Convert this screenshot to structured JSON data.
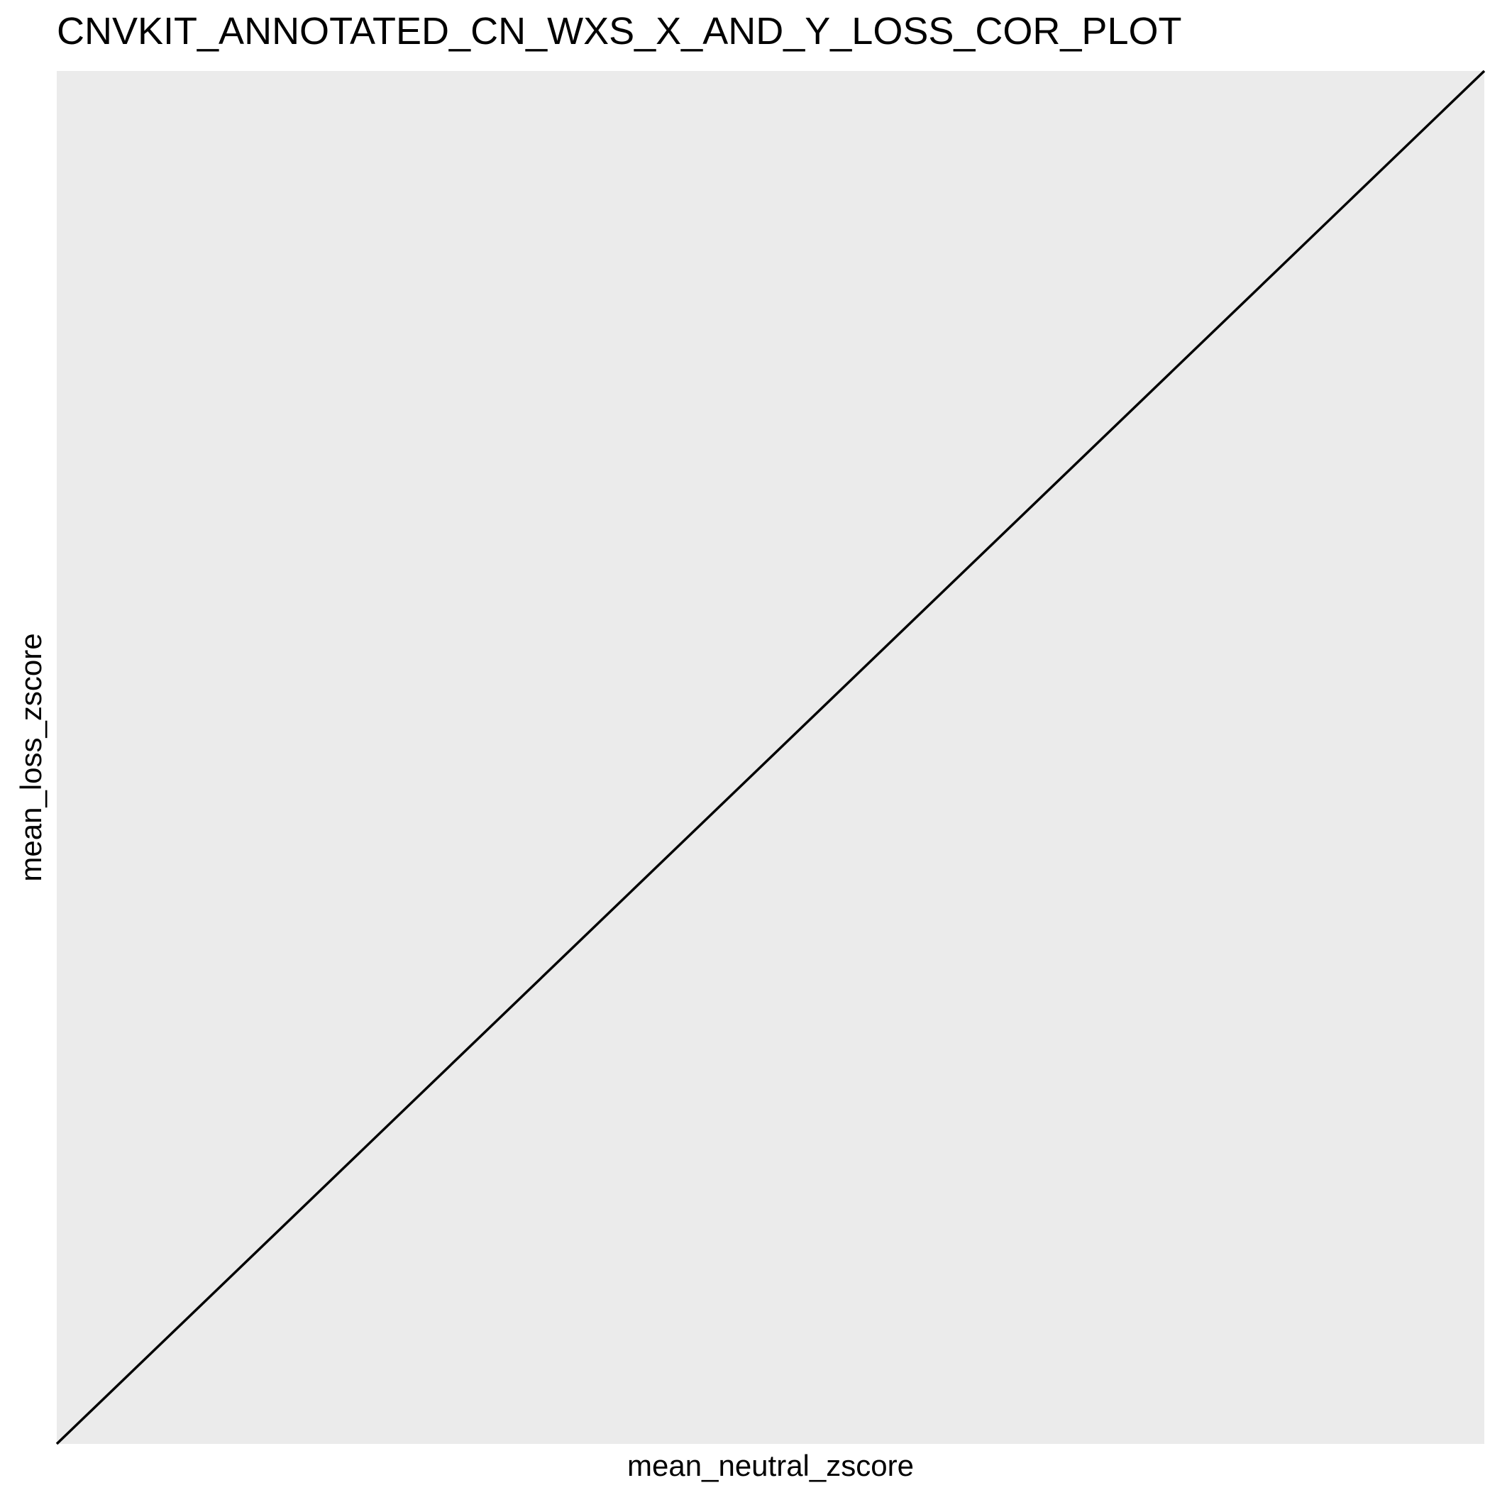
{
  "chart_data": {
    "type": "line",
    "title": "CNVKIT_ANNOTATED_CN_WXS_X_AND_Y_LOSS_COR_PLOT",
    "xlabel": "mean_neutral_zscore",
    "ylabel": "mean_loss_zscore",
    "series": [
      {
        "x": [
          0,
          1
        ],
        "y": [
          0,
          1
        ]
      }
    ],
    "xlim": [
      0,
      1
    ],
    "ylim": [
      0,
      1
    ],
    "grid": false,
    "panel_background": "#EBEBEB",
    "line_color": "#000000"
  }
}
